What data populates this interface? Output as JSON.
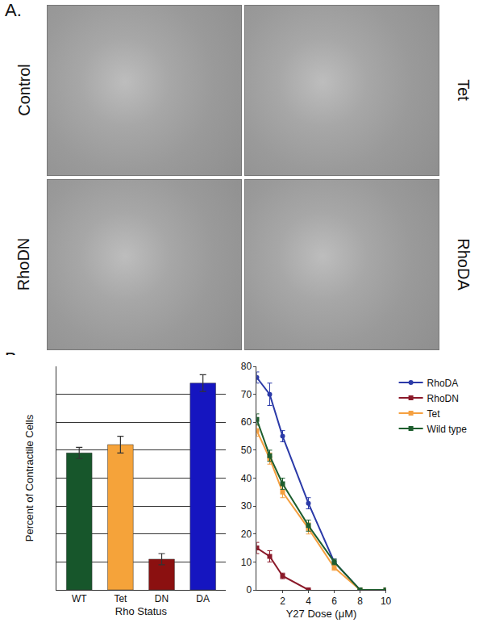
{
  "panels": {
    "A": {
      "label": "A.",
      "images": [
        "Control",
        "Tet",
        "RhoDN",
        "RhoDA"
      ]
    },
    "B": {
      "label": "B."
    }
  },
  "chart_data": [
    {
      "type": "bar",
      "y_label": "Percent of Contractile Cells",
      "x_label": "Rho Status",
      "categories": [
        "WT",
        "Tet",
        "DN",
        "DA"
      ],
      "values": [
        49,
        52,
        11,
        74
      ],
      "errors": [
        2,
        3,
        2,
        3
      ],
      "colors": [
        "#17562b",
        "#f5a33a",
        "#8b1010",
        "#1515c0"
      ],
      "ylim": [
        0,
        80
      ],
      "yticks": [
        0,
        10,
        20,
        30,
        40,
        50,
        60,
        70,
        80
      ],
      "grid": true,
      "tick_labels": "x"
    },
    {
      "type": "line",
      "x_label": "Y27 Dose (μM)",
      "x": [
        0,
        1,
        2,
        4,
        6,
        8,
        10
      ],
      "xlim": [
        0,
        10
      ],
      "xticks": [
        2,
        4,
        6,
        8,
        10
      ],
      "ylim": [
        0,
        80
      ],
      "yticks": [
        0,
        10,
        20,
        30,
        40,
        50,
        60,
        70,
        80
      ],
      "grid": false,
      "legend": "right",
      "series": [
        {
          "name": "RhoDA",
          "color": "#2b3aa8",
          "marker": "circle",
          "values": [
            76,
            70,
            55,
            31,
            10,
            0,
            0
          ],
          "errors": [
            2,
            4,
            2,
            2,
            1,
            0,
            0
          ]
        },
        {
          "name": "RhoDN",
          "color": "#8b1a2a",
          "marker": "square",
          "values": [
            15,
            12,
            5,
            0,
            null,
            null,
            null
          ],
          "errors": [
            2,
            2,
            1,
            0,
            null,
            null,
            null
          ]
        },
        {
          "name": "Tet",
          "color": "#f5a040",
          "marker": "square",
          "values": [
            57,
            47,
            35,
            22,
            8,
            0,
            0
          ],
          "errors": [
            2,
            2,
            2,
            2,
            1,
            0,
            0
          ]
        },
        {
          "name": "Wild type",
          "color": "#1e5e2e",
          "marker": "square",
          "values": [
            61,
            48,
            38,
            23,
            10,
            0,
            0
          ],
          "errors": [
            2,
            2,
            2,
            2,
            1,
            0,
            0
          ]
        }
      ]
    }
  ]
}
